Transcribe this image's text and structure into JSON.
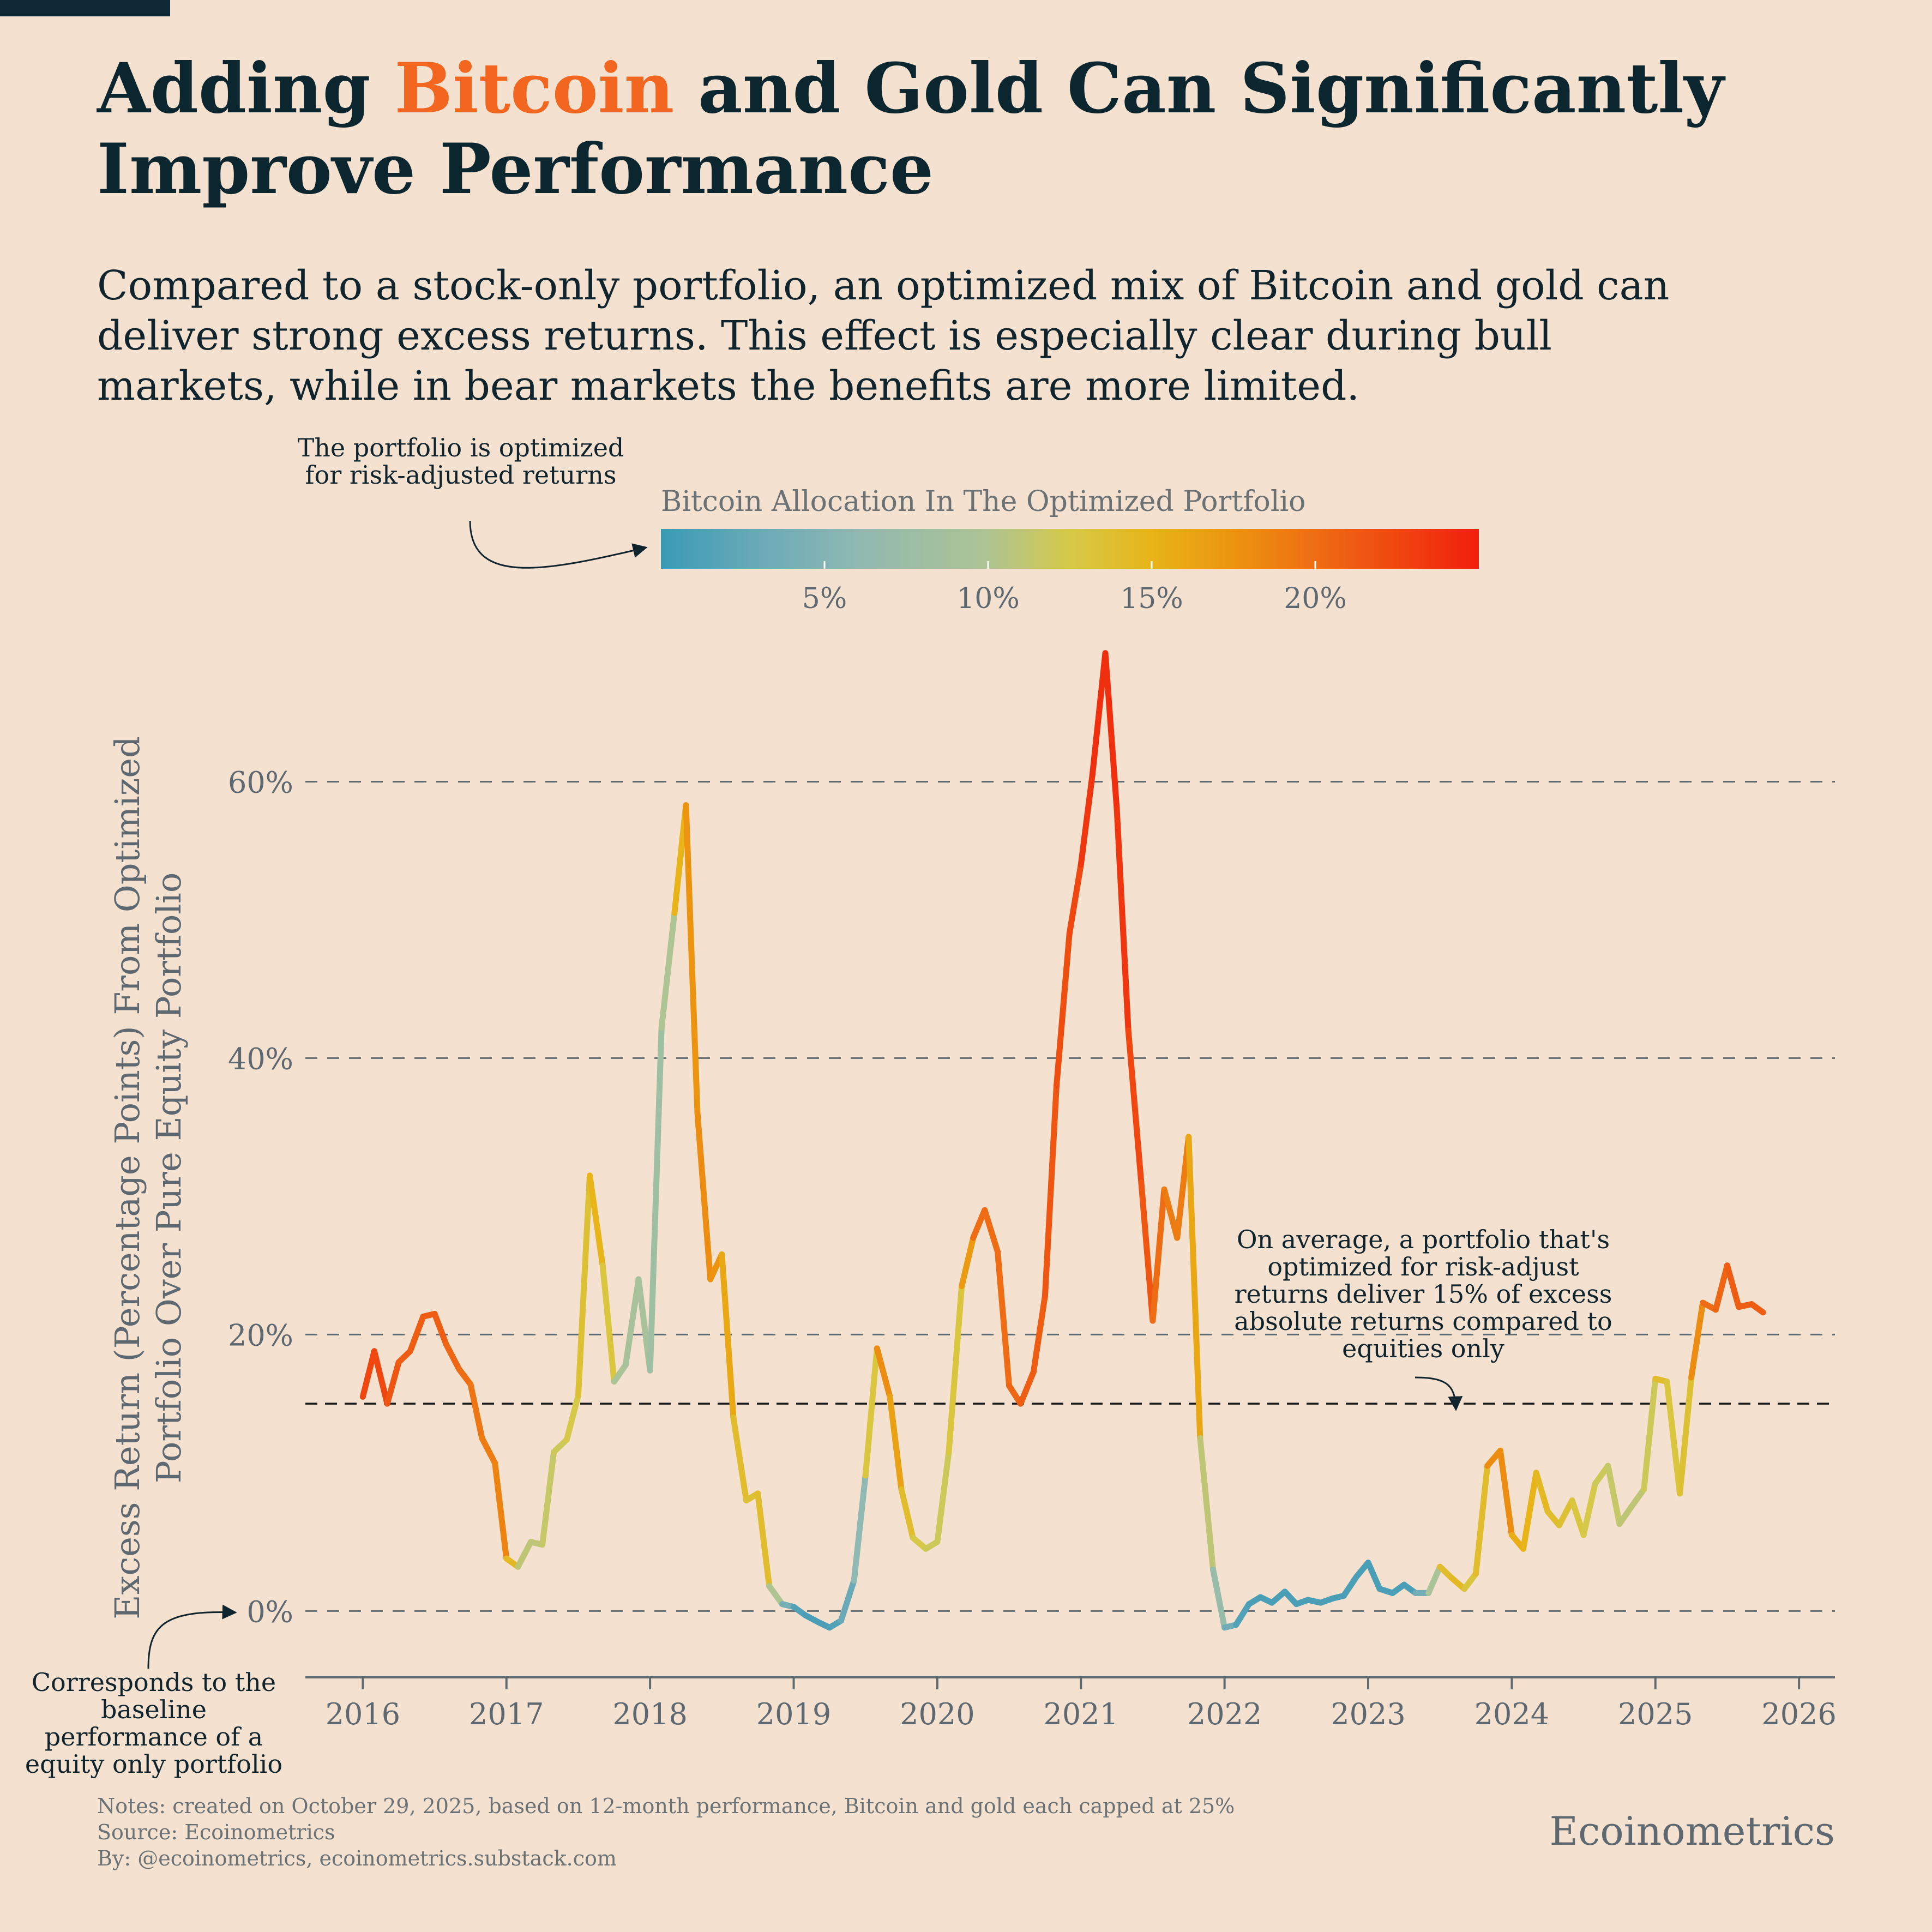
{
  "title": {
    "before": "Adding ",
    "highlight": "Bitcoin",
    "after": " and Gold Can Significantly Improve Performance"
  },
  "subtitle": "Compared to a stock-only portfolio, an optimized mix of Bitcoin and gold can deliver strong excess returns. This effect is especially clear during bull markets, while in bear markets the benefits are more limited.",
  "annotations": {
    "optimized": "The portfolio is optimized for risk-adjusted returns",
    "average": "On average, a portfolio that's optimized for risk-adjust returns deliver 15% of excess absolute returns compared to equities only",
    "baseline": "Corresponds to the baseline performance of a equity only portfolio"
  },
  "footer": {
    "notes": "Notes: created on October 29, 2025, based on 12-month performance, Bitcoin and gold each capped at 25%",
    "source": "Source: Ecoinometrics",
    "by": "By: @ecoinometrics, ecoinometrics.substack.com"
  },
  "brand": "Ecoinometrics",
  "colors": {
    "background": "#f4e1d0",
    "title": "#0c2630",
    "highlight": "#f2661f",
    "grid": "#5f6b70",
    "average_line": "#1a1a1a"
  },
  "chart_data": {
    "type": "line",
    "title": "",
    "ylabel": "Excess Return (Percentage Points) From Optimized Portfolio Over Pure Equity Portfolio",
    "xlabel": "",
    "xlim": [
      2015.6,
      2026.25
    ],
    "ylim": [
      -4.8,
      70
    ],
    "x_ticks": [
      2016,
      2017,
      2018,
      2019,
      2020,
      2021,
      2022,
      2023,
      2024,
      2025,
      2026
    ],
    "x_tick_labels": [
      "2016",
      "2017",
      "2018",
      "2019",
      "2020",
      "2021",
      "2022",
      "2023",
      "2024",
      "2025",
      "2026"
    ],
    "y_ticks": [
      0,
      20,
      40,
      60
    ],
    "y_tick_labels": [
      "0%",
      "20%",
      "40%",
      "60%"
    ],
    "grid": "horizontal dashed",
    "average_line": {
      "value": 15
    },
    "colorbar": {
      "title": "Bitcoin Allocation In The Optimized Portfolio",
      "range": [
        0,
        25
      ],
      "ticks": [
        5,
        10,
        15,
        20
      ],
      "tick_labels": [
        "5%",
        "10%",
        "15%",
        "20%"
      ],
      "stops": [
        {
          "value": 0,
          "color": "#3a9ab5"
        },
        {
          "value": 3,
          "color": "#6aaab8"
        },
        {
          "value": 6,
          "color": "#8fb9b2"
        },
        {
          "value": 10,
          "color": "#aec493"
        },
        {
          "value": 12.5,
          "color": "#d6c949"
        },
        {
          "value": 15,
          "color": "#e8b418"
        },
        {
          "value": 17.5,
          "color": "#ec940f"
        },
        {
          "value": 20,
          "color": "#ee6d14"
        },
        {
          "value": 25,
          "color": "#f11f0c"
        }
      ]
    },
    "series": [
      {
        "points": [
          [
            2016.0,
            15.5,
            22
          ],
          [
            2016.08,
            18.8,
            23
          ],
          [
            2016.17,
            15.0,
            22
          ],
          [
            2016.25,
            18.0,
            21
          ],
          [
            2016.33,
            18.8,
            21
          ],
          [
            2016.42,
            21.3,
            21
          ],
          [
            2016.5,
            21.5,
            21
          ],
          [
            2016.58,
            19.3,
            21
          ],
          [
            2016.67,
            17.5,
            20
          ],
          [
            2016.75,
            16.4,
            20
          ],
          [
            2016.83,
            12.5,
            19
          ],
          [
            2016.92,
            10.7,
            19
          ],
          [
            2017.0,
            3.8,
            18
          ],
          [
            2017.08,
            3.2,
            11
          ],
          [
            2017.17,
            5.0,
            11
          ],
          [
            2017.25,
            4.8,
            11
          ],
          [
            2017.33,
            11.5,
            12
          ],
          [
            2017.42,
            12.4,
            12
          ],
          [
            2017.5,
            15.6,
            13
          ],
          [
            2017.58,
            31.5,
            14
          ],
          [
            2017.67,
            25.0,
            16
          ],
          [
            2017.75,
            16.6,
            10
          ],
          [
            2017.83,
            17.8,
            9
          ],
          [
            2017.92,
            24.0,
            9
          ],
          [
            2018.0,
            17.4,
            9
          ],
          [
            2018.08,
            42.2,
            7
          ],
          [
            2018.17,
            50.5,
            13
          ],
          [
            2018.25,
            58.3,
            17
          ],
          [
            2018.33,
            36.0,
            18
          ],
          [
            2018.42,
            24.0,
            18
          ],
          [
            2018.5,
            25.8,
            17
          ],
          [
            2018.58,
            14.0,
            15
          ],
          [
            2018.67,
            8.0,
            13
          ],
          [
            2018.75,
            8.5,
            14
          ],
          [
            2018.83,
            1.8,
            14
          ],
          [
            2018.92,
            0.5,
            6
          ],
          [
            2019.0,
            0.3,
            2
          ],
          [
            2019.08,
            -0.3,
            1
          ],
          [
            2019.17,
            -0.8,
            1
          ],
          [
            2019.25,
            -1.2,
            1
          ],
          [
            2019.33,
            -0.7,
            2
          ],
          [
            2019.42,
            2.2,
            4
          ],
          [
            2019.5,
            9.8,
            8
          ],
          [
            2019.58,
            19.0,
            18
          ],
          [
            2019.67,
            15.5,
            18
          ],
          [
            2019.75,
            8.8,
            15
          ],
          [
            2019.83,
            5.3,
            13
          ],
          [
            2019.92,
            4.5,
            12
          ],
          [
            2020.0,
            5.0,
            12
          ],
          [
            2020.08,
            11.5,
            12
          ],
          [
            2020.17,
            23.5,
            14
          ],
          [
            2020.25,
            27.0,
            20
          ],
          [
            2020.33,
            29.0,
            20
          ],
          [
            2020.42,
            26.0,
            20
          ],
          [
            2020.5,
            16.3,
            20
          ],
          [
            2020.58,
            15.0,
            21
          ],
          [
            2020.67,
            17.3,
            21
          ],
          [
            2020.75,
            22.8,
            21
          ],
          [
            2020.83,
            38.0,
            22
          ],
          [
            2020.92,
            49.0,
            22
          ],
          [
            2021.0,
            54.0,
            23
          ],
          [
            2021.08,
            60.5,
            24
          ],
          [
            2021.17,
            69.3,
            24
          ],
          [
            2021.25,
            58.0,
            24
          ],
          [
            2021.33,
            42.0,
            23
          ],
          [
            2021.42,
            31.0,
            22
          ],
          [
            2021.5,
            21.0,
            21
          ],
          [
            2021.58,
            30.5,
            19
          ],
          [
            2021.67,
            27.0,
            19
          ],
          [
            2021.75,
            34.3,
            19
          ],
          [
            2021.83,
            12.5,
            13
          ],
          [
            2021.92,
            3.0,
            9
          ],
          [
            2022.0,
            -1.2,
            5
          ],
          [
            2022.08,
            -1.0,
            2
          ],
          [
            2022.17,
            0.5,
            1
          ],
          [
            2022.25,
            1.0,
            1
          ],
          [
            2022.33,
            0.6,
            1
          ],
          [
            2022.42,
            1.4,
            1
          ],
          [
            2022.5,
            0.5,
            1
          ],
          [
            2022.58,
            0.8,
            1
          ],
          [
            2022.67,
            0.6,
            1
          ],
          [
            2022.75,
            0.9,
            1
          ],
          [
            2022.83,
            1.1,
            1
          ],
          [
            2022.92,
            2.5,
            1
          ],
          [
            2023.0,
            3.5,
            1
          ],
          [
            2023.08,
            1.6,
            1
          ],
          [
            2023.17,
            1.3,
            1
          ],
          [
            2023.25,
            1.9,
            1
          ],
          [
            2023.33,
            1.3,
            1
          ],
          [
            2023.42,
            1.3,
            6
          ],
          [
            2023.5,
            3.2,
            13
          ],
          [
            2023.58,
            2.4,
            15
          ],
          [
            2023.67,
            1.6,
            14
          ],
          [
            2023.75,
            2.7,
            12
          ],
          [
            2023.83,
            10.5,
            16
          ],
          [
            2023.92,
            11.6,
            20
          ],
          [
            2024.0,
            5.5,
            16
          ],
          [
            2024.08,
            4.5,
            15
          ],
          [
            2024.17,
            10.0,
            15
          ],
          [
            2024.25,
            7.2,
            14
          ],
          [
            2024.33,
            6.2,
            14
          ],
          [
            2024.42,
            8.0,
            13
          ],
          [
            2024.5,
            5.5,
            13
          ],
          [
            2024.58,
            9.2,
            12
          ],
          [
            2024.67,
            10.5,
            12
          ],
          [
            2024.75,
            6.3,
            11
          ],
          [
            2024.83,
            7.5,
            11
          ],
          [
            2024.92,
            8.8,
            11
          ],
          [
            2025.0,
            16.8,
            13
          ],
          [
            2025.08,
            16.6,
            15
          ],
          [
            2025.17,
            8.5,
            11
          ],
          [
            2025.25,
            16.9,
            16
          ],
          [
            2025.33,
            22.3,
            20
          ],
          [
            2025.42,
            21.8,
            20
          ],
          [
            2025.5,
            25.0,
            21
          ],
          [
            2025.58,
            22.0,
            21
          ],
          [
            2025.67,
            22.2,
            21
          ],
          [
            2025.75,
            21.6,
            21
          ]
        ]
      }
    ]
  }
}
